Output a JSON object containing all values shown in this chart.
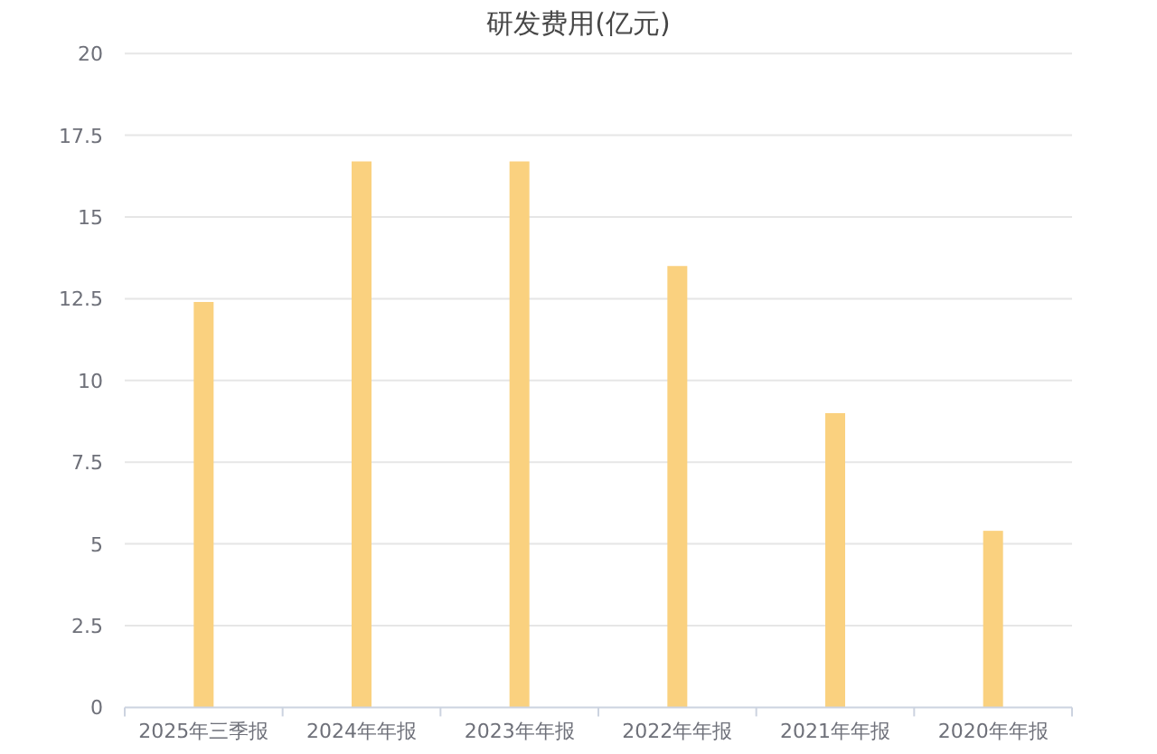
{
  "chart_data": {
    "type": "bar",
    "title": "研发费用(亿元)",
    "categories": [
      "2025年三季报",
      "2024年年报",
      "2023年年报",
      "2022年年报",
      "2021年年报",
      "2020年年报"
    ],
    "values": [
      12.4,
      16.7,
      16.7,
      13.5,
      9.0,
      5.4
    ],
    "color": "#fad17f",
    "ylim": [
      0,
      20
    ],
    "yticks": [
      0,
      2.5,
      5,
      7.5,
      10,
      12.5,
      15,
      17.5,
      20
    ],
    "grid": "y"
  }
}
